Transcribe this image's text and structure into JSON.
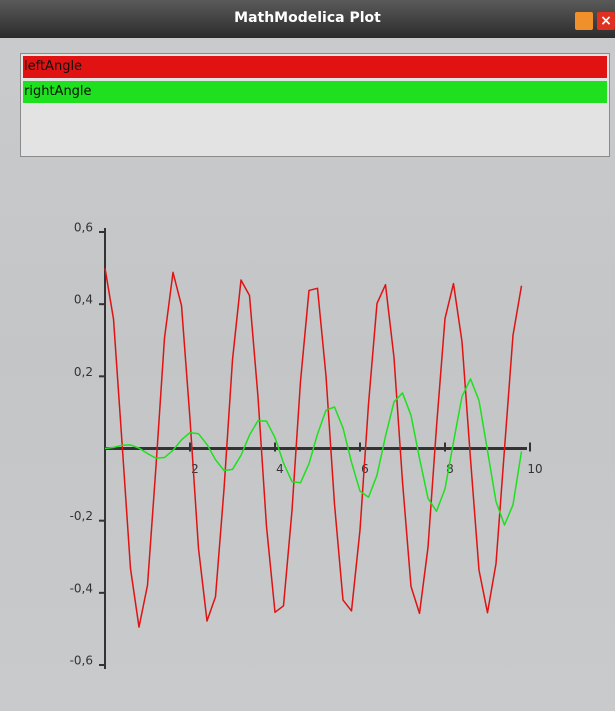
{
  "window_title": "MathModelica Plot",
  "chart_data": {
    "type": "line",
    "x": [
      0,
      0.2,
      0.4,
      0.6,
      0.8,
      1,
      1.2,
      1.4,
      1.6,
      1.8,
      2,
      2.2,
      2.4,
      2.6,
      2.8,
      3,
      3.2,
      3.4,
      3.6,
      3.8,
      4,
      4.2,
      4.4,
      4.6,
      4.8,
      5,
      5.2,
      5.4,
      5.6,
      5.8,
      6,
      6.2,
      6.4,
      6.6,
      6.8,
      7,
      7.2,
      7.4,
      7.6,
      7.8,
      8,
      8.2,
      8.4,
      8.6,
      8.8,
      9,
      9.2,
      9.4,
      9.6,
      9.8
    ],
    "series": [
      {
        "name": "leftAngle",
        "color": "#e01212",
        "values": [
          0.5,
          0.359,
          0.017,
          -0.333,
          -0.495,
          -0.379,
          -0.049,
          0.306,
          0.488,
          0.396,
          0.082,
          -0.277,
          -0.478,
          -0.411,
          -0.113,
          0.246,
          0.467,
          0.424,
          0.143,
          -0.216,
          -0.454,
          -0.436,
          -0.172,
          0.186,
          0.438,
          0.444,
          0.201,
          -0.154,
          -0.42,
          -0.45,
          -0.226,
          0.123,
          0.402,
          0.454,
          0.252,
          -0.092,
          -0.382,
          -0.457,
          -0.274,
          0.06,
          0.36,
          0.457,
          0.296,
          -0.029,
          -0.337,
          -0.455,
          -0.319,
          -0.001,
          0.314,
          0.451
        ]
      },
      {
        "name": "rightAngle",
        "color": "#1ee01e",
        "values": [
          0,
          0.003,
          0.009,
          0.01,
          0.001,
          -0.014,
          -0.027,
          -0.025,
          -0.005,
          0.024,
          0.044,
          0.041,
          0.011,
          -0.031,
          -0.061,
          -0.058,
          -0.019,
          0.037,
          0.077,
          0.076,
          0.03,
          -0.04,
          -0.092,
          -0.095,
          -0.042,
          0.04,
          0.106,
          0.115,
          0.057,
          -0.038,
          -0.118,
          -0.135,
          -0.074,
          0.034,
          0.129,
          0.154,
          0.092,
          -0.027,
          -0.138,
          -0.174,
          -0.112,
          0.018,
          0.144,
          0.193,
          0.133,
          -0.006,
          -0.147,
          -0.212,
          -0.156,
          -0.008
        ]
      }
    ],
    "xlim": [
      0,
      10
    ],
    "xticks": [
      2,
      4,
      6,
      8,
      10
    ],
    "ylim": [
      -0.6,
      0.6
    ],
    "yticks": [
      {
        "value": 0.6,
        "label": "0,6"
      },
      {
        "value": 0.4,
        "label": "0,4"
      },
      {
        "value": 0.2,
        "label": "0,2"
      },
      {
        "value": -0.2,
        "label": "-0,2"
      },
      {
        "value": -0.4,
        "label": "-0,4"
      },
      {
        "value": -0.6,
        "label": "-0,6"
      }
    ]
  }
}
